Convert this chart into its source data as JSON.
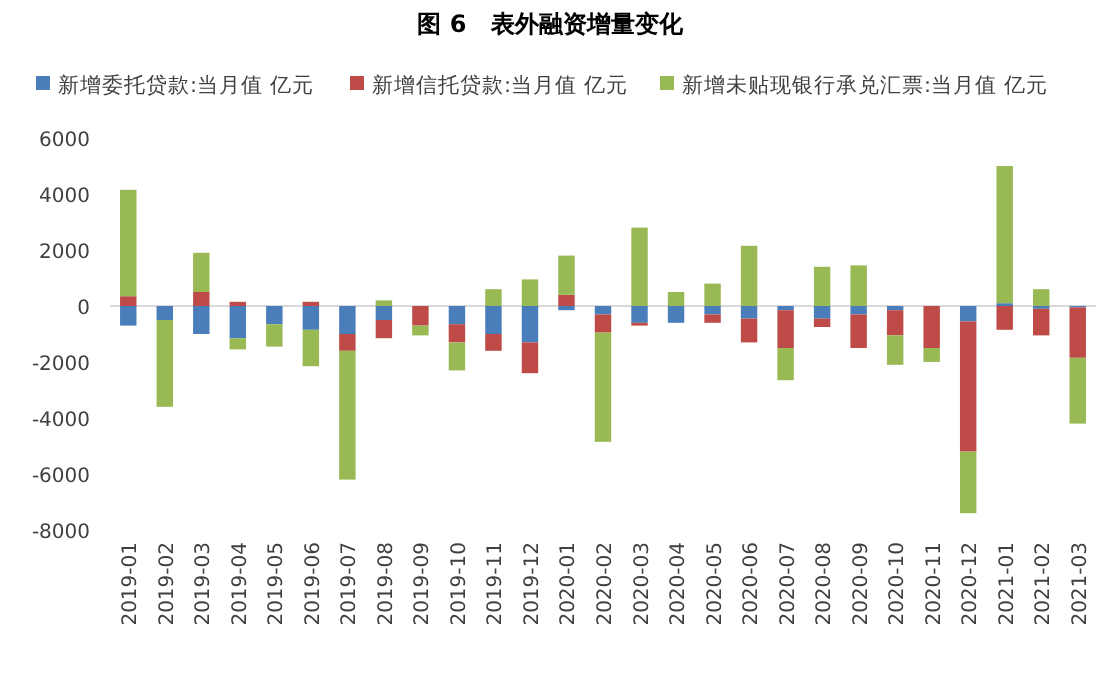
{
  "chart_data": {
    "type": "bar",
    "stacked": true,
    "title": "图 6　表外融资增量变化",
    "categories": [
      "2019-01",
      "2019-02",
      "2019-03",
      "2019-04",
      "2019-05",
      "2019-06",
      "2019-07",
      "2019-08",
      "2019-09",
      "2019-10",
      "2019-11",
      "2019-12",
      "2020-01",
      "2020-02",
      "2020-03",
      "2020-04",
      "2020-05",
      "2020-06",
      "2020-07",
      "2020-08",
      "2020-09",
      "2020-10",
      "2020-11",
      "2020-12",
      "2021-01",
      "2021-02",
      "2021-03"
    ],
    "series": [
      {
        "name": "新增委托贷款:当月值 亿元",
        "color": "#4a7ebb",
        "values": [
          -700,
          -500,
          -1000,
          -1150,
          -650,
          -850,
          -1000,
          -500,
          0,
          -650,
          -1000,
          -1300,
          -150,
          -300,
          -600,
          -600,
          -300,
          -450,
          -150,
          -450,
          -300,
          -150,
          0,
          -550,
          100,
          -100,
          -50
        ]
      },
      {
        "name": "新增信托贷款:当月值 亿元",
        "color": "#be4b48",
        "values": [
          350,
          0,
          500,
          150,
          0,
          150,
          -600,
          -650,
          -700,
          -650,
          -600,
          -1100,
          400,
          -650,
          -100,
          0,
          -300,
          -850,
          -1350,
          -300,
          -1200,
          -900,
          -1500,
          -4650,
          -850,
          -950,
          -1800
        ]
      },
      {
        "name": "新增未贴现银行承兑汇票:当月值 亿元",
        "color": "#98b954",
        "values": [
          3800,
          -3100,
          1400,
          -400,
          -800,
          -1300,
          -4600,
          200,
          -350,
          -1000,
          600,
          950,
          1400,
          -3900,
          2800,
          500,
          800,
          2150,
          -1150,
          1400,
          1450,
          -1050,
          -500,
          -2200,
          4900,
          600,
          -2350
        ]
      }
    ],
    "ylim": [
      -8000,
      6000
    ],
    "yticks": [
      -8000,
      -6000,
      -4000,
      -2000,
      0,
      2000,
      4000,
      6000
    ],
    "legend": "top"
  }
}
